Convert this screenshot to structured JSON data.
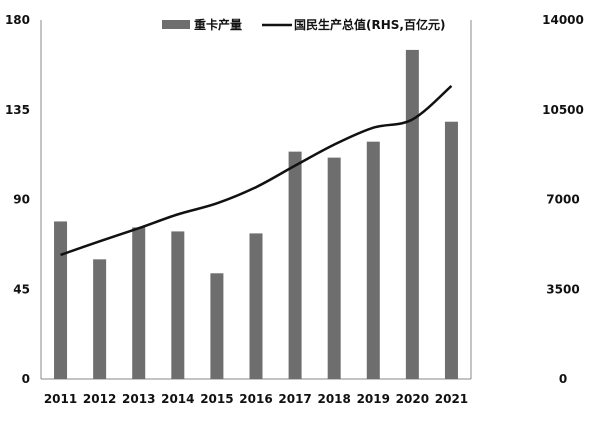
{
  "chart_data": {
    "type": "bar+line",
    "title": "",
    "categories": [
      "2011",
      "2012",
      "2013",
      "2014",
      "2015",
      "2016",
      "2017",
      "2018",
      "2019",
      "2020",
      "2021"
    ],
    "series": [
      {
        "name": "重卡产量",
        "type": "bar",
        "axis": "left",
        "color": "#6e6e6e",
        "values": [
          79,
          60,
          76,
          74,
          53,
          73,
          114,
          111,
          119,
          165,
          129
        ]
      },
      {
        "name": "国民生产总值(RHS,百亿元)",
        "type": "line",
        "axis": "right",
        "color": "#111111",
        "values": [
          4840,
          5370,
          5880,
          6420,
          6850,
          7480,
          8320,
          9140,
          9800,
          10120,
          11430
        ]
      }
    ],
    "left_axis": {
      "ylim": [
        0,
        180
      ],
      "ticks": [
        "0",
        "45",
        "90",
        "135",
        "180"
      ]
    },
    "right_axis": {
      "ylim": [
        0,
        14000
      ],
      "ticks": [
        "0",
        "3500",
        "7000",
        "10500",
        "14000"
      ]
    },
    "legend_placement": "top-center",
    "grid": false
  }
}
